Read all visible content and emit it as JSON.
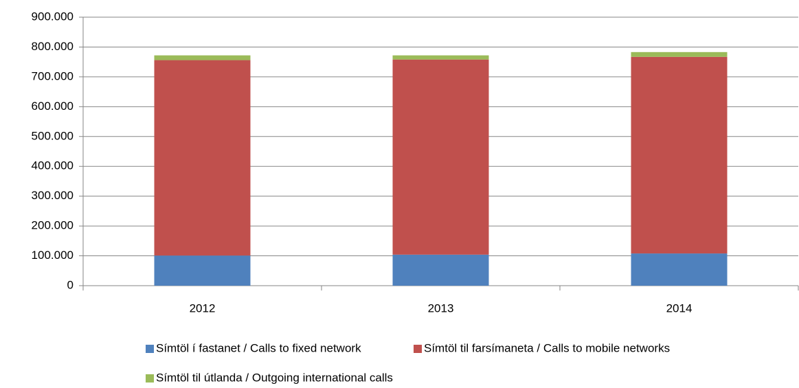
{
  "chart_data": {
    "type": "stacked-bar",
    "categories": [
      "2012",
      "2013",
      "2014"
    ],
    "series": [
      {
        "name": "Símtöl í fastanet / Calls to fixed network",
        "color": "#4f81bd",
        "values": [
          101000,
          104000,
          108000
        ]
      },
      {
        "name": "Símtöl til farsímaneta / Calls to mobile networks",
        "color": "#c0504d",
        "values": [
          655000,
          654000,
          659000
        ]
      },
      {
        "name": "Símtöl til útlanda / Outgoing international calls",
        "color": "#9bbb59",
        "values": [
          16000,
          14000,
          16000
        ]
      }
    ],
    "ylim": [
      0,
      900000
    ],
    "yticks": [
      0,
      {
        "value": 100000,
        "label": "100.000"
      },
      {
        "value": 200000,
        "label": "200.000"
      },
      {
        "value": 300000,
        "label": "300.000"
      },
      {
        "value": 400000,
        "label": "400.000"
      },
      {
        "value": 500000,
        "label": "500.000"
      },
      {
        "value": 600000,
        "label": "600.000"
      },
      {
        "value": 700000,
        "label": "700.000"
      },
      {
        "value": 800000,
        "label": "800.000"
      },
      {
        "value": 900000,
        "label": "900.000"
      }
    ],
    "grid": true
  }
}
